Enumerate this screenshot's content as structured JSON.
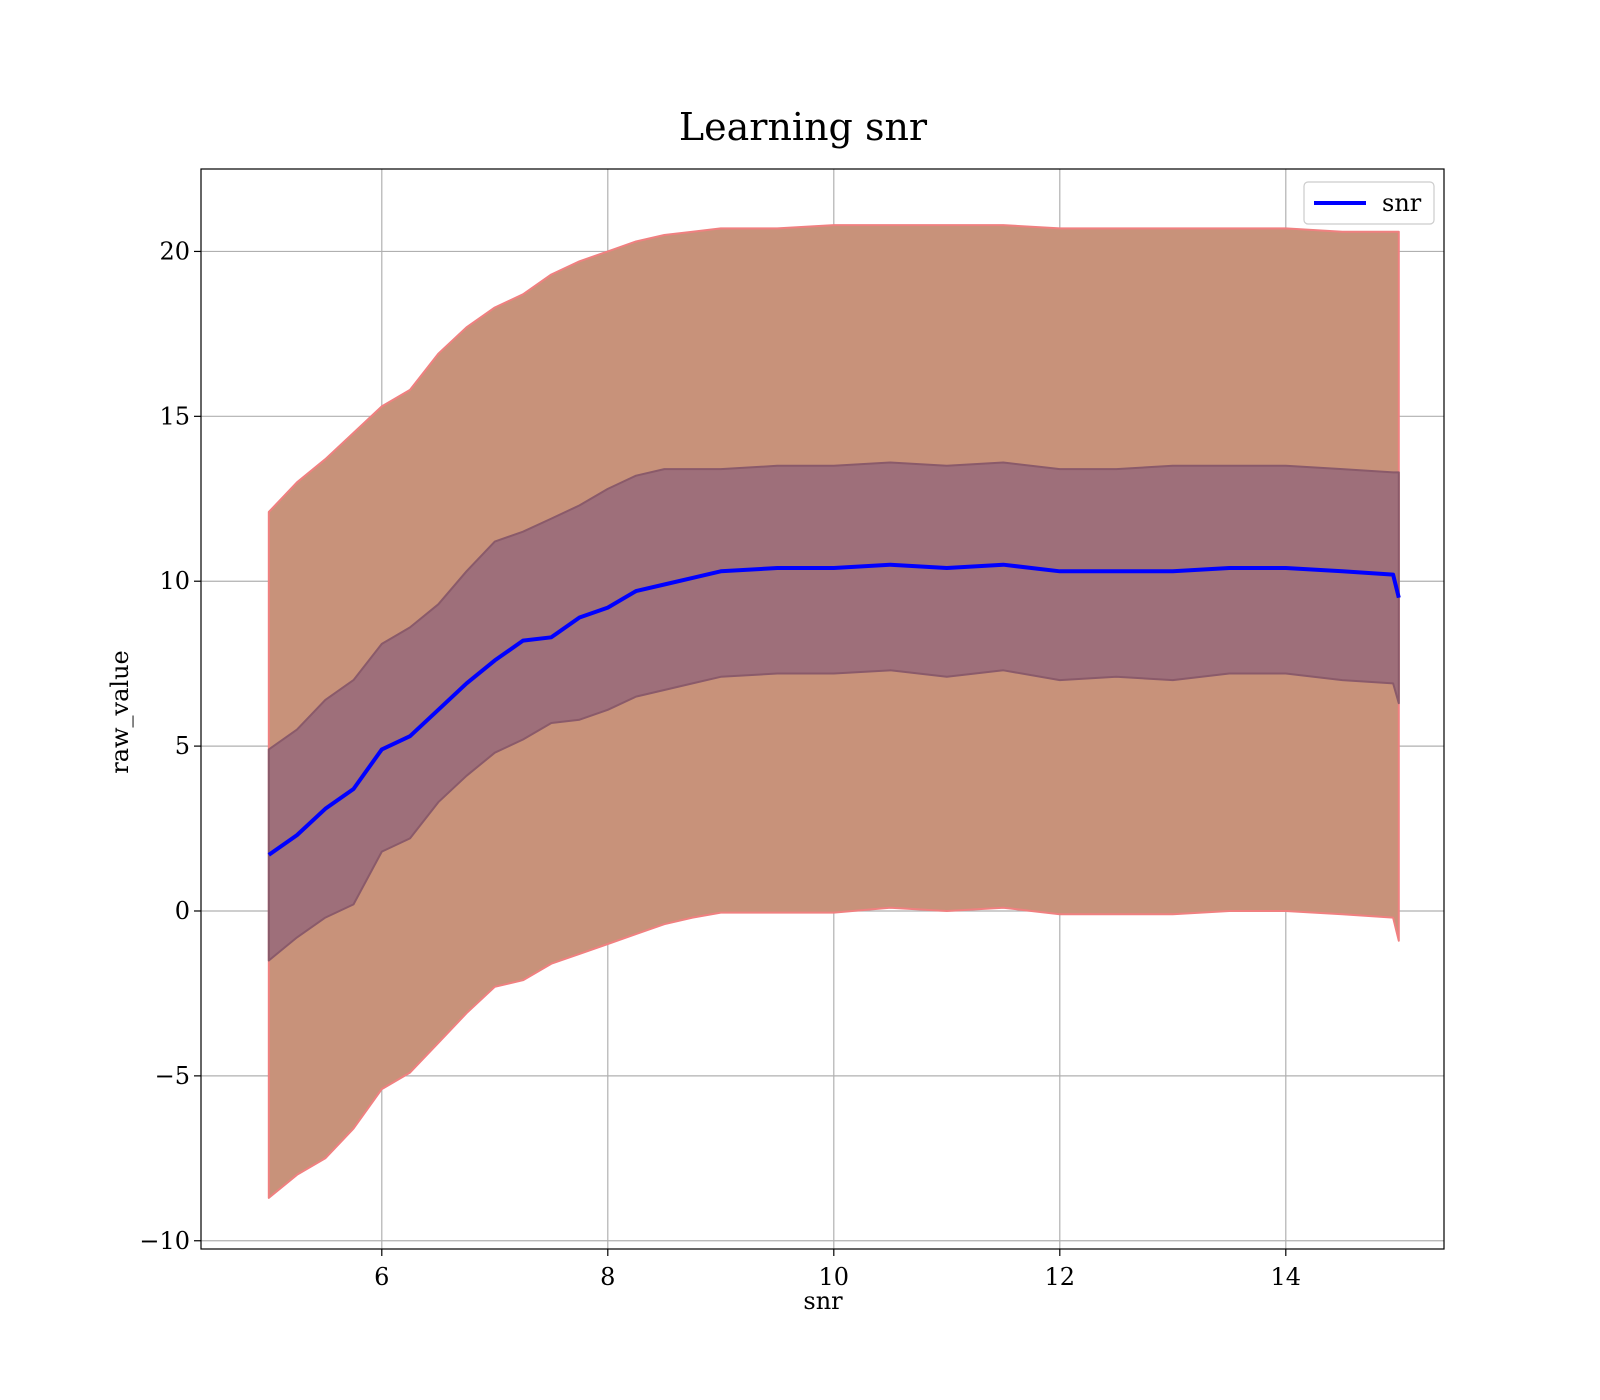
{
  "chart_data": {
    "type": "line",
    "title": "Learning snr",
    "xlabel": "snr",
    "ylabel": "raw_value",
    "xlim": [
      4.4,
      15.4
    ],
    "ylim": [
      -10.25,
      22.5
    ],
    "xticks": [
      6,
      8,
      10,
      12,
      14
    ],
    "yticks": [
      -10,
      -5,
      0,
      5,
      10,
      15,
      20
    ],
    "xtick_labels": [
      "6",
      "8",
      "10",
      "12",
      "14"
    ],
    "ytick_labels": [
      "−10",
      "−5",
      "0",
      "5",
      "10",
      "15",
      "20"
    ],
    "grid": true,
    "legend_position": "top-right",
    "x": [
      5.0,
      5.25,
      5.5,
      5.75,
      6.0,
      6.25,
      6.5,
      6.75,
      7.0,
      7.25,
      7.5,
      7.75,
      8.0,
      8.25,
      8.5,
      8.75,
      9.0,
      9.5,
      10.0,
      10.5,
      11.0,
      11.5,
      12.0,
      12.5,
      13.0,
      13.5,
      14.0,
      14.5,
      14.95,
      15.0
    ],
    "series": [
      {
        "name": "snr",
        "color": "#0000ff",
        "values": [
          1.7,
          2.3,
          3.1,
          3.7,
          4.9,
          5.3,
          6.1,
          6.9,
          7.6,
          8.2,
          8.3,
          8.9,
          9.2,
          9.7,
          9.9,
          10.1,
          10.3,
          10.4,
          10.4,
          10.5,
          10.4,
          10.5,
          10.3,
          10.3,
          10.3,
          10.4,
          10.4,
          10.3,
          10.2,
          9.5
        ]
      }
    ],
    "bands": [
      {
        "color": "#c8927a",
        "edge": "#f08080",
        "upper": [
          12.1,
          13.0,
          13.7,
          14.5,
          15.3,
          15.8,
          16.9,
          17.7,
          18.3,
          18.7,
          19.3,
          19.7,
          20.0,
          20.3,
          20.5,
          20.6,
          20.7,
          20.7,
          20.8,
          20.8,
          20.8,
          20.8,
          20.7,
          20.7,
          20.7,
          20.7,
          20.7,
          20.6,
          20.6,
          20.6
        ],
        "lower": [
          -8.7,
          -8.0,
          -7.5,
          -6.6,
          -5.4,
          -4.9,
          -4.0,
          -3.1,
          -2.3,
          -2.1,
          -1.6,
          -1.3,
          -1.0,
          -0.7,
          -0.4,
          -0.2,
          -0.05,
          -0.05,
          -0.05,
          0.1,
          0.0,
          0.1,
          -0.1,
          -0.1,
          -0.1,
          0.0,
          0.0,
          -0.1,
          -0.2,
          -0.9
        ]
      },
      {
        "color": "#9e6f7a",
        "edge": "#8a5a6a",
        "upper": [
          4.9,
          5.5,
          6.4,
          7.0,
          8.1,
          8.6,
          9.3,
          10.3,
          11.2,
          11.5,
          11.9,
          12.3,
          12.8,
          13.2,
          13.4,
          13.4,
          13.4,
          13.5,
          13.5,
          13.6,
          13.5,
          13.6,
          13.4,
          13.4,
          13.5,
          13.5,
          13.5,
          13.4,
          13.3,
          13.3
        ],
        "lower": [
          -1.5,
          -0.8,
          -0.2,
          0.2,
          1.8,
          2.2,
          3.3,
          4.1,
          4.8,
          5.2,
          5.7,
          5.8,
          6.1,
          6.5,
          6.7,
          6.9,
          7.1,
          7.2,
          7.2,
          7.3,
          7.1,
          7.3,
          7.0,
          7.1,
          7.0,
          7.2,
          7.2,
          7.0,
          6.9,
          6.3
        ]
      }
    ]
  }
}
